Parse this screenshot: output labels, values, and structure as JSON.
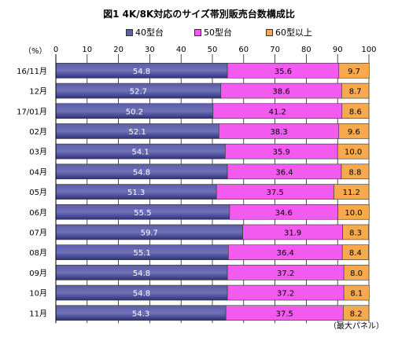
{
  "title": "図1  4K/8K対応のサイズ帯別販売台数構成比",
  "unit_label": "（%）",
  "footnote": "（最大パネル）",
  "colors": {
    "s40": "#5b5ea6",
    "s40_dark": "#2f3178",
    "s50": "#f25af0",
    "s60": "#f7a94d",
    "grid": "#000000"
  },
  "chart_data": {
    "type": "bar",
    "orientation": "horizontal",
    "stacked": true,
    "title": "図1  4K/8K対応のサイズ帯別販売台数構成比",
    "xlim": [
      0,
      100
    ],
    "xticks": [
      0,
      10,
      20,
      30,
      40,
      50,
      60,
      70,
      80,
      90,
      100
    ],
    "legend_position": "top",
    "categories": [
      "16/11月",
      "12月",
      "17/01月",
      "02月",
      "03月",
      "04月",
      "05月",
      "06月",
      "07月",
      "08月",
      "09月",
      "10月",
      "11月"
    ],
    "series": [
      {
        "name": "40型台",
        "values": [
          54.8,
          52.7,
          50.2,
          52.1,
          54.1,
          54.8,
          51.3,
          55.5,
          59.7,
          55.1,
          54.8,
          54.8,
          54.3
        ]
      },
      {
        "name": "50型台",
        "values": [
          35.6,
          38.6,
          41.2,
          38.3,
          35.9,
          36.4,
          37.5,
          34.6,
          31.9,
          36.4,
          37.2,
          37.2,
          37.5
        ]
      },
      {
        "name": "60型以上",
        "values": [
          9.7,
          8.7,
          8.6,
          9.6,
          10.0,
          8.8,
          11.2,
          10.0,
          8.3,
          8.4,
          8.0,
          8.1,
          8.2
        ]
      }
    ],
    "value_labels": [
      [
        "54.8",
        "52.7",
        "50.2",
        "52.1",
        "54.1",
        "54.8",
        "51.3",
        "55.5",
        "59.7",
        "55.1",
        "54.8",
        "54.8",
        "54.3"
      ],
      [
        "35.6",
        "38.6",
        "41.2",
        "38.3",
        "35.9",
        "36.4",
        "37.5",
        "34.6",
        "31.9",
        "36.4",
        "37.2",
        "37.2",
        "37.5"
      ],
      [
        "9.7",
        "8.7",
        "8.6",
        "9.6",
        "10.0",
        "8.8",
        "11.2",
        "10.0",
        "8.3",
        "8.4",
        "8.0",
        "8.1",
        "8.2"
      ]
    ]
  }
}
